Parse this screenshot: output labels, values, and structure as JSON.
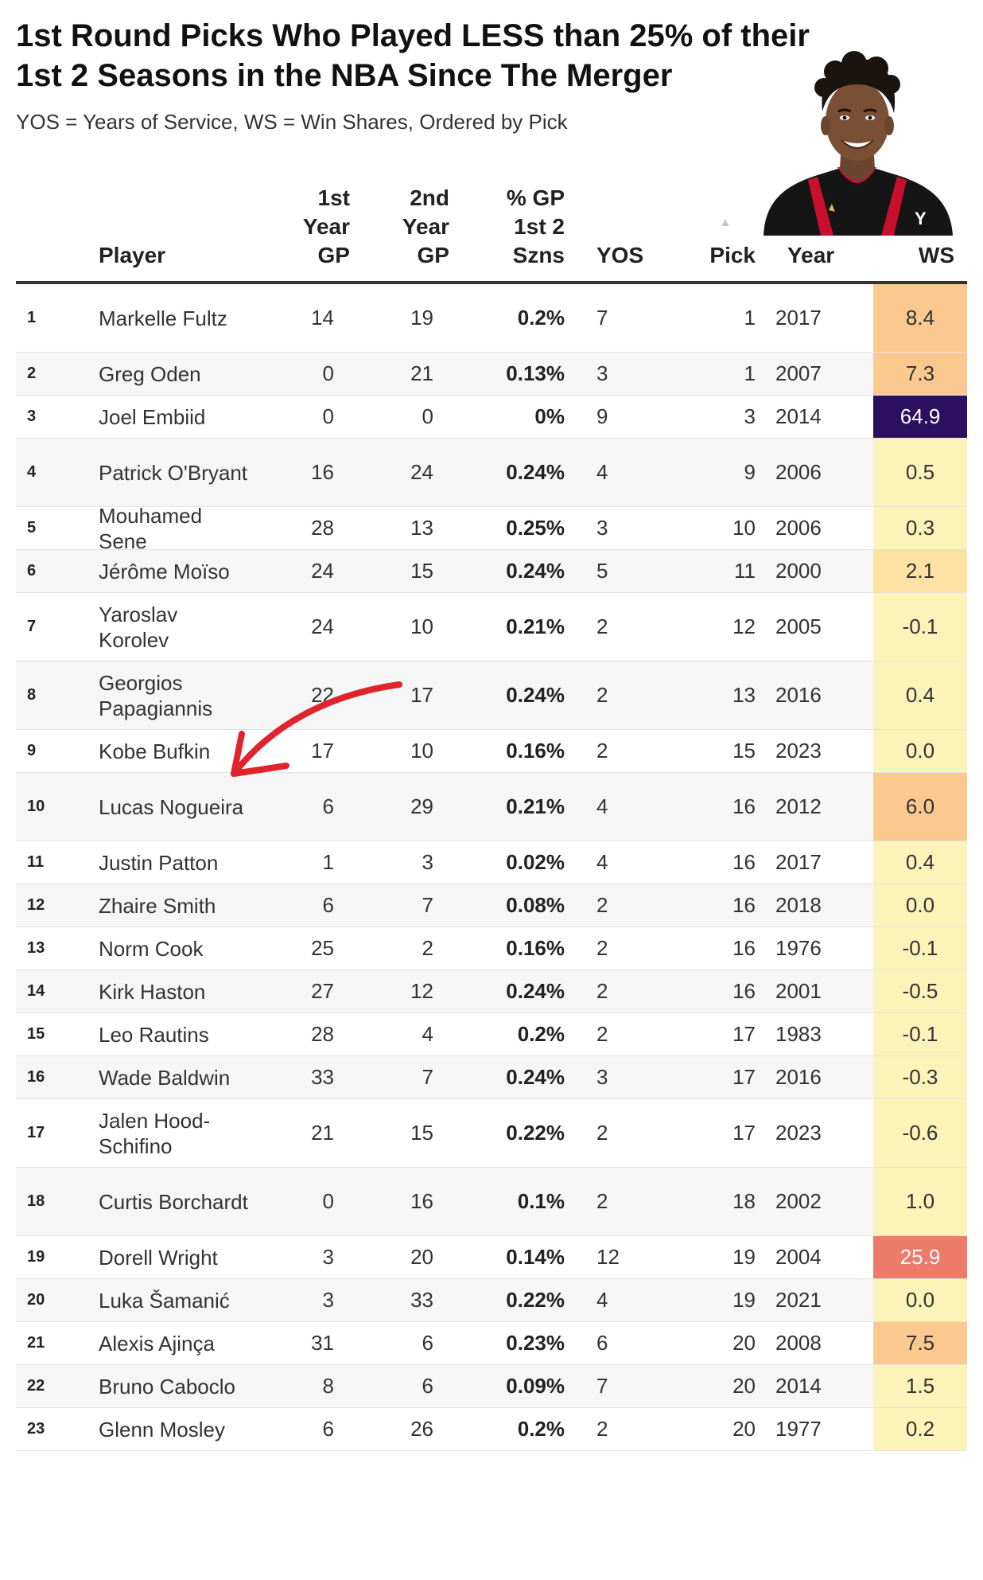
{
  "title": "1st Round Picks Who Played LESS than 25% of their 1st 2 Seasons in the NBA Since The Merger",
  "subtitle": "YOS = Years of Service, WS = Win Shares, Ordered by Pick",
  "columns": {
    "player": "Player",
    "g1": "1st Year GP",
    "g2": "2nd Year GP",
    "pct": "% GP 1st 2 Szns",
    "yos": "YOS",
    "pick": "Pick",
    "year": "Year",
    "ws": "WS"
  },
  "sort_indicator": "▲",
  "photo_icon": "player-photo-icon",
  "colors": {
    "ws_scale": [
      "#fbf4b8",
      "#fde2a4",
      "#fbc990",
      "#f08070",
      "#2c1060"
    ]
  },
  "rows": [
    {
      "rank": "1",
      "player": "Markelle Fultz",
      "g1": "14",
      "g2": "19",
      "pct": "0.2%",
      "yos": "7",
      "pick": "1",
      "year": "2017",
      "ws": "8.4",
      "ws_bg": "#fbc990",
      "ws_fg": "#333333"
    },
    {
      "rank": "2",
      "player": "Greg Oden",
      "g1": "0",
      "g2": "21",
      "pct": "0.13%",
      "yos": "3",
      "pick": "1",
      "year": "2007",
      "ws": "7.3",
      "ws_bg": "#fbc990",
      "ws_fg": "#333333"
    },
    {
      "rank": "3",
      "player": "Joel Embiid",
      "g1": "0",
      "g2": "0",
      "pct": "0%",
      "yos": "9",
      "pick": "3",
      "year": "2014",
      "ws": "64.9",
      "ws_bg": "#2c1060",
      "ws_fg": "#ffffff"
    },
    {
      "rank": "4",
      "player": "Patrick O'Bryant",
      "g1": "16",
      "g2": "24",
      "pct": "0.24%",
      "yos": "4",
      "pick": "9",
      "year": "2006",
      "ws": "0.5",
      "ws_bg": "#fbf4b8",
      "ws_fg": "#333333"
    },
    {
      "rank": "5",
      "player": "Mouhamed Sene",
      "g1": "28",
      "g2": "13",
      "pct": "0.25%",
      "yos": "3",
      "pick": "10",
      "year": "2006",
      "ws": "0.3",
      "ws_bg": "#fbf4b8",
      "ws_fg": "#333333"
    },
    {
      "rank": "6",
      "player": "Jérôme Moïso",
      "g1": "24",
      "g2": "15",
      "pct": "0.24%",
      "yos": "5",
      "pick": "11",
      "year": "2000",
      "ws": "2.1",
      "ws_bg": "#fde2a4",
      "ws_fg": "#333333"
    },
    {
      "rank": "7",
      "player": "Yaroslav Korolev",
      "g1": "24",
      "g2": "10",
      "pct": "0.21%",
      "yos": "2",
      "pick": "12",
      "year": "2005",
      "ws": "-0.1",
      "ws_bg": "#fbf4b8",
      "ws_fg": "#333333"
    },
    {
      "rank": "8",
      "player": "Georgios Papagiannis",
      "g1": "22",
      "g2": "17",
      "pct": "0.24%",
      "yos": "2",
      "pick": "13",
      "year": "2016",
      "ws": "0.4",
      "ws_bg": "#fbf4b8",
      "ws_fg": "#333333"
    },
    {
      "rank": "9",
      "player": "Kobe Bufkin",
      "g1": "17",
      "g2": "10",
      "pct": "0.16%",
      "yos": "2",
      "pick": "15",
      "year": "2023",
      "ws": "0.0",
      "ws_bg": "#fbf4b8",
      "ws_fg": "#333333"
    },
    {
      "rank": "10",
      "player": "Lucas Nogueira",
      "g1": "6",
      "g2": "29",
      "pct": "0.21%",
      "yos": "4",
      "pick": "16",
      "year": "2012",
      "ws": "6.0",
      "ws_bg": "#fbc990",
      "ws_fg": "#333333"
    },
    {
      "rank": "11",
      "player": "Justin Patton",
      "g1": "1",
      "g2": "3",
      "pct": "0.02%",
      "yos": "4",
      "pick": "16",
      "year": "2017",
      "ws": "0.4",
      "ws_bg": "#fbf4b8",
      "ws_fg": "#333333"
    },
    {
      "rank": "12",
      "player": "Zhaire Smith",
      "g1": "6",
      "g2": "7",
      "pct": "0.08%",
      "yos": "2",
      "pick": "16",
      "year": "2018",
      "ws": "0.0",
      "ws_bg": "#fbf4b8",
      "ws_fg": "#333333"
    },
    {
      "rank": "13",
      "player": "Norm Cook",
      "g1": "25",
      "g2": "2",
      "pct": "0.16%",
      "yos": "2",
      "pick": "16",
      "year": "1976",
      "ws": "-0.1",
      "ws_bg": "#fbf4b8",
      "ws_fg": "#333333"
    },
    {
      "rank": "14",
      "player": "Kirk Haston",
      "g1": "27",
      "g2": "12",
      "pct": "0.24%",
      "yos": "2",
      "pick": "16",
      "year": "2001",
      "ws": "-0.5",
      "ws_bg": "#fbf4b8",
      "ws_fg": "#333333"
    },
    {
      "rank": "15",
      "player": "Leo Rautins",
      "g1": "28",
      "g2": "4",
      "pct": "0.2%",
      "yos": "2",
      "pick": "17",
      "year": "1983",
      "ws": "-0.1",
      "ws_bg": "#fbf4b8",
      "ws_fg": "#333333"
    },
    {
      "rank": "16",
      "player": "Wade Baldwin",
      "g1": "33",
      "g2": "7",
      "pct": "0.24%",
      "yos": "3",
      "pick": "17",
      "year": "2016",
      "ws": "-0.3",
      "ws_bg": "#fbf4b8",
      "ws_fg": "#333333"
    },
    {
      "rank": "17",
      "player": "Jalen Hood-Schifino",
      "g1": "21",
      "g2": "15",
      "pct": "0.22%",
      "yos": "2",
      "pick": "17",
      "year": "2023",
      "ws": "-0.6",
      "ws_bg": "#fbf4b8",
      "ws_fg": "#333333"
    },
    {
      "rank": "18",
      "player": "Curtis Borchardt",
      "g1": "0",
      "g2": "16",
      "pct": "0.1%",
      "yos": "2",
      "pick": "18",
      "year": "2002",
      "ws": "1.0",
      "ws_bg": "#fbf4b8",
      "ws_fg": "#333333"
    },
    {
      "rank": "19",
      "player": "Dorell Wright",
      "g1": "3",
      "g2": "20",
      "pct": "0.14%",
      "yos": "12",
      "pick": "19",
      "year": "2004",
      "ws": "25.9",
      "ws_bg": "#ee7a6a",
      "ws_fg": "#ffffff"
    },
    {
      "rank": "20",
      "player": "Luka Šamanić",
      "g1": "3",
      "g2": "33",
      "pct": "0.22%",
      "yos": "4",
      "pick": "19",
      "year": "2021",
      "ws": "0.0",
      "ws_bg": "#fbf4b8",
      "ws_fg": "#333333"
    },
    {
      "rank": "21",
      "player": "Alexis Ajinça",
      "g1": "31",
      "g2": "6",
      "pct": "0.23%",
      "yos": "6",
      "pick": "20",
      "year": "2008",
      "ws": "7.5",
      "ws_bg": "#fbc990",
      "ws_fg": "#333333"
    },
    {
      "rank": "22",
      "player": "Bruno Caboclo",
      "g1": "8",
      "g2": "6",
      "pct": "0.09%",
      "yos": "7",
      "pick": "20",
      "year": "2014",
      "ws": "1.5",
      "ws_bg": "#fbf4b8",
      "ws_fg": "#333333"
    },
    {
      "rank": "23",
      "player": "Glenn Mosley",
      "g1": "6",
      "g2": "26",
      "pct": "0.2%",
      "yos": "2",
      "pick": "20",
      "year": "1977",
      "ws": "0.2",
      "ws_bg": "#fbf4b8",
      "ws_fg": "#333333"
    }
  ]
}
